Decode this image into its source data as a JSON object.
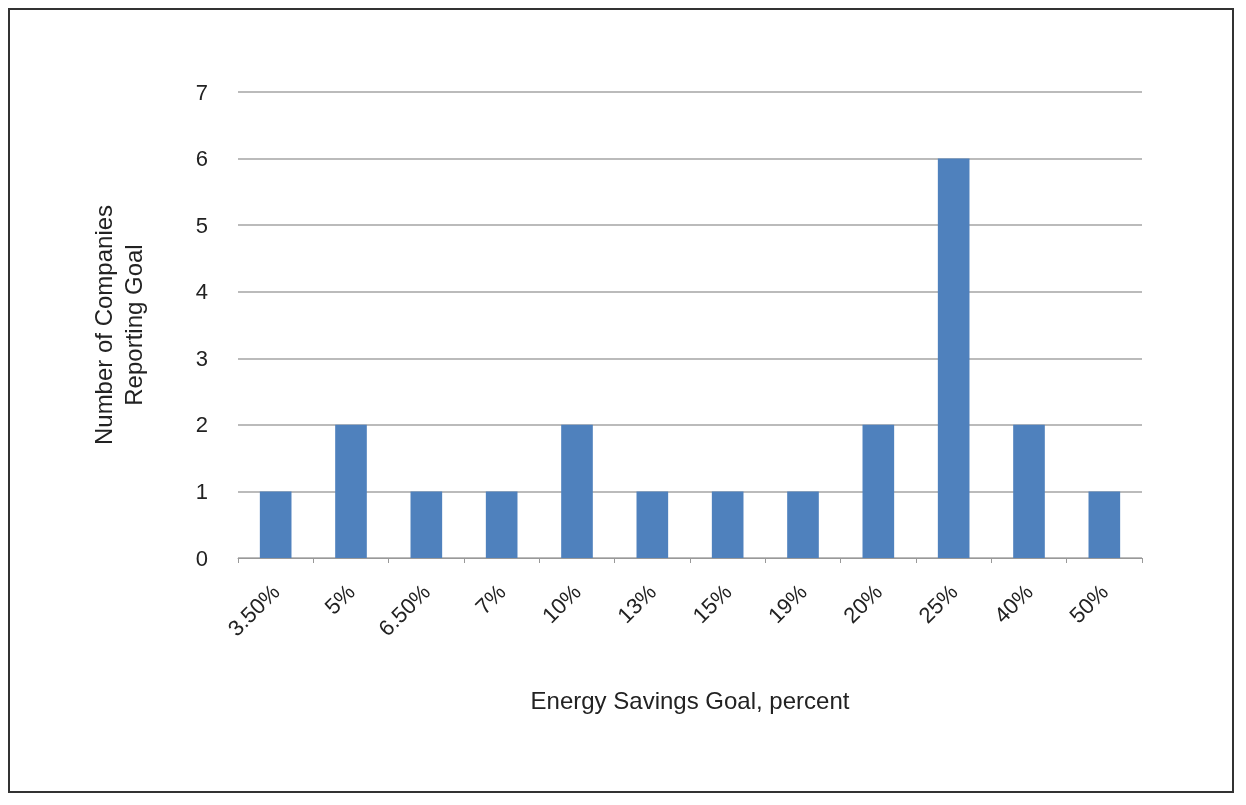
{
  "chart_data": {
    "type": "bar",
    "xlabel": "Energy Savings Goal, percent",
    "ylabel": "Number of Companies\nReporting Goal",
    "categories": [
      "3.50%",
      "5%",
      "6.50%",
      "7%",
      "10%",
      "13%",
      "15%",
      "19%",
      "20%",
      "25%",
      "40%",
      "50%"
    ],
    "values": [
      1,
      2,
      1,
      1,
      2,
      1,
      1,
      1,
      2,
      6,
      2,
      1
    ],
    "color": "#4f81bd",
    "ylim": [
      0,
      7
    ],
    "yticks": [
      0,
      1,
      2,
      3,
      4,
      5,
      6,
      7
    ],
    "grid": "y"
  }
}
